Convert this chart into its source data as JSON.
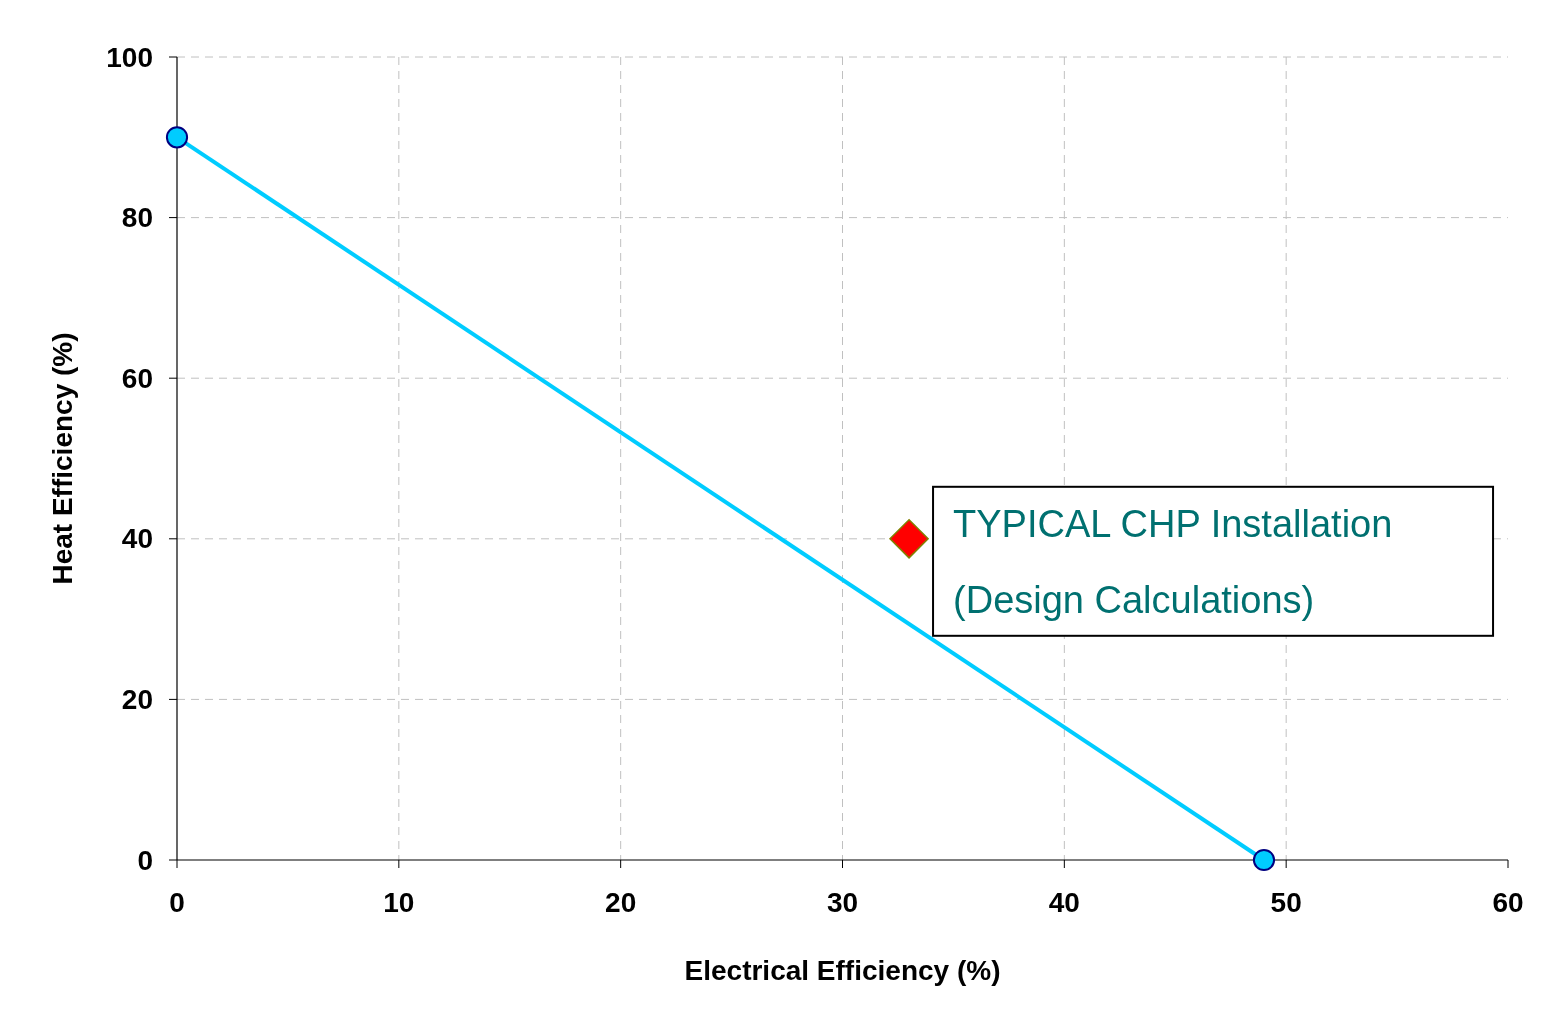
{
  "chart_data": {
    "type": "line",
    "xlabel": "Electrical Efficiency (%)",
    "ylabel": "Heat Efficiency (%)",
    "xlim": [
      0,
      60
    ],
    "ylim": [
      0,
      100
    ],
    "xticks": [
      0,
      10,
      20,
      30,
      40,
      50,
      60
    ],
    "yticks": [
      0,
      20,
      40,
      60,
      80,
      100
    ],
    "grid": true,
    "series": [
      {
        "x": [
          0,
          49
        ],
        "values": [
          90,
          0
        ],
        "color": "#00ccff",
        "marker": "circle",
        "line_style": "solid"
      },
      {
        "type": "scatter",
        "x": [
          33
        ],
        "values": [
          40
        ],
        "color": "#ff0000",
        "marker": "diamond"
      }
    ],
    "annotations": [
      {
        "text": "TYPICAL CHP Installation\n(Design Calculations)",
        "x": 33,
        "y": 40
      }
    ]
  }
}
